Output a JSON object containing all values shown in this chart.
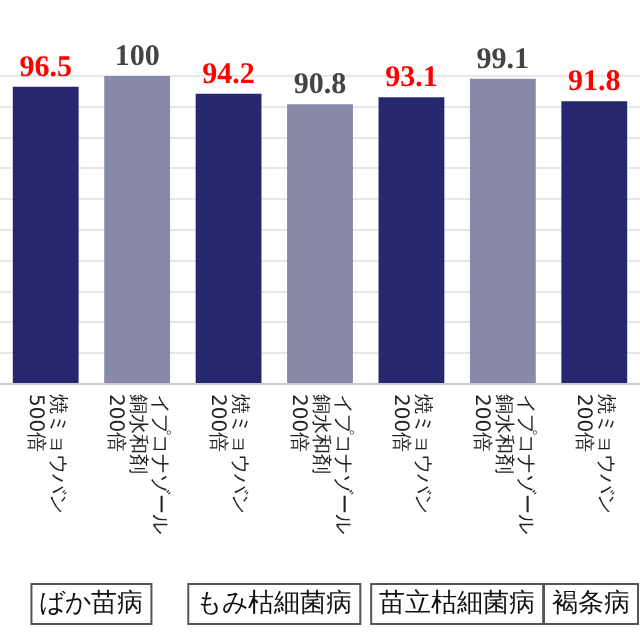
{
  "chart_data": {
    "type": "bar",
    "categories": [
      "焼ミョウバン 500倍",
      "イプコナゾール銅水和剤 200倍",
      "焼ミョウバン 200倍",
      "イプコナゾール銅水和剤 200倍",
      "焼ミョウバン 200倍",
      "イプコナゾール銅水和剤 200倍",
      "焼ミョウバン 200倍"
    ],
    "series": [
      {
        "color": "#27276f",
        "values": [
          96.5,
          null,
          94.2,
          null,
          93.1,
          null,
          91.8
        ]
      },
      {
        "color": "#8888a8",
        "values": [
          null,
          100,
          null,
          90.8,
          null,
          99.1,
          null
        ]
      }
    ],
    "ylim": [
      0,
      100
    ],
    "yticks": [
      {
        "value": 0,
        "label": null
      },
      {
        "value": 10,
        "label": null
      },
      {
        "value": 20,
        "label": null
      },
      {
        "value": 30,
        "label": null
      },
      {
        "value": 40,
        "label": null
      },
      {
        "value": 50,
        "label": null
      },
      {
        "value": 60,
        "label": null
      },
      {
        "value": 70,
        "label": null
      },
      {
        "value": 80,
        "label": null
      },
      {
        "value": 90,
        "label": null
      },
      {
        "value": 100,
        "label": null
      }
    ],
    "grid": "y",
    "tick_labels": "x",
    "data_labels": true,
    "legend": false,
    "annotations": [
      "ばか苗病",
      "もみ枯細菌病",
      "苗立枯細菌病",
      "褐条病"
    ]
  }
}
